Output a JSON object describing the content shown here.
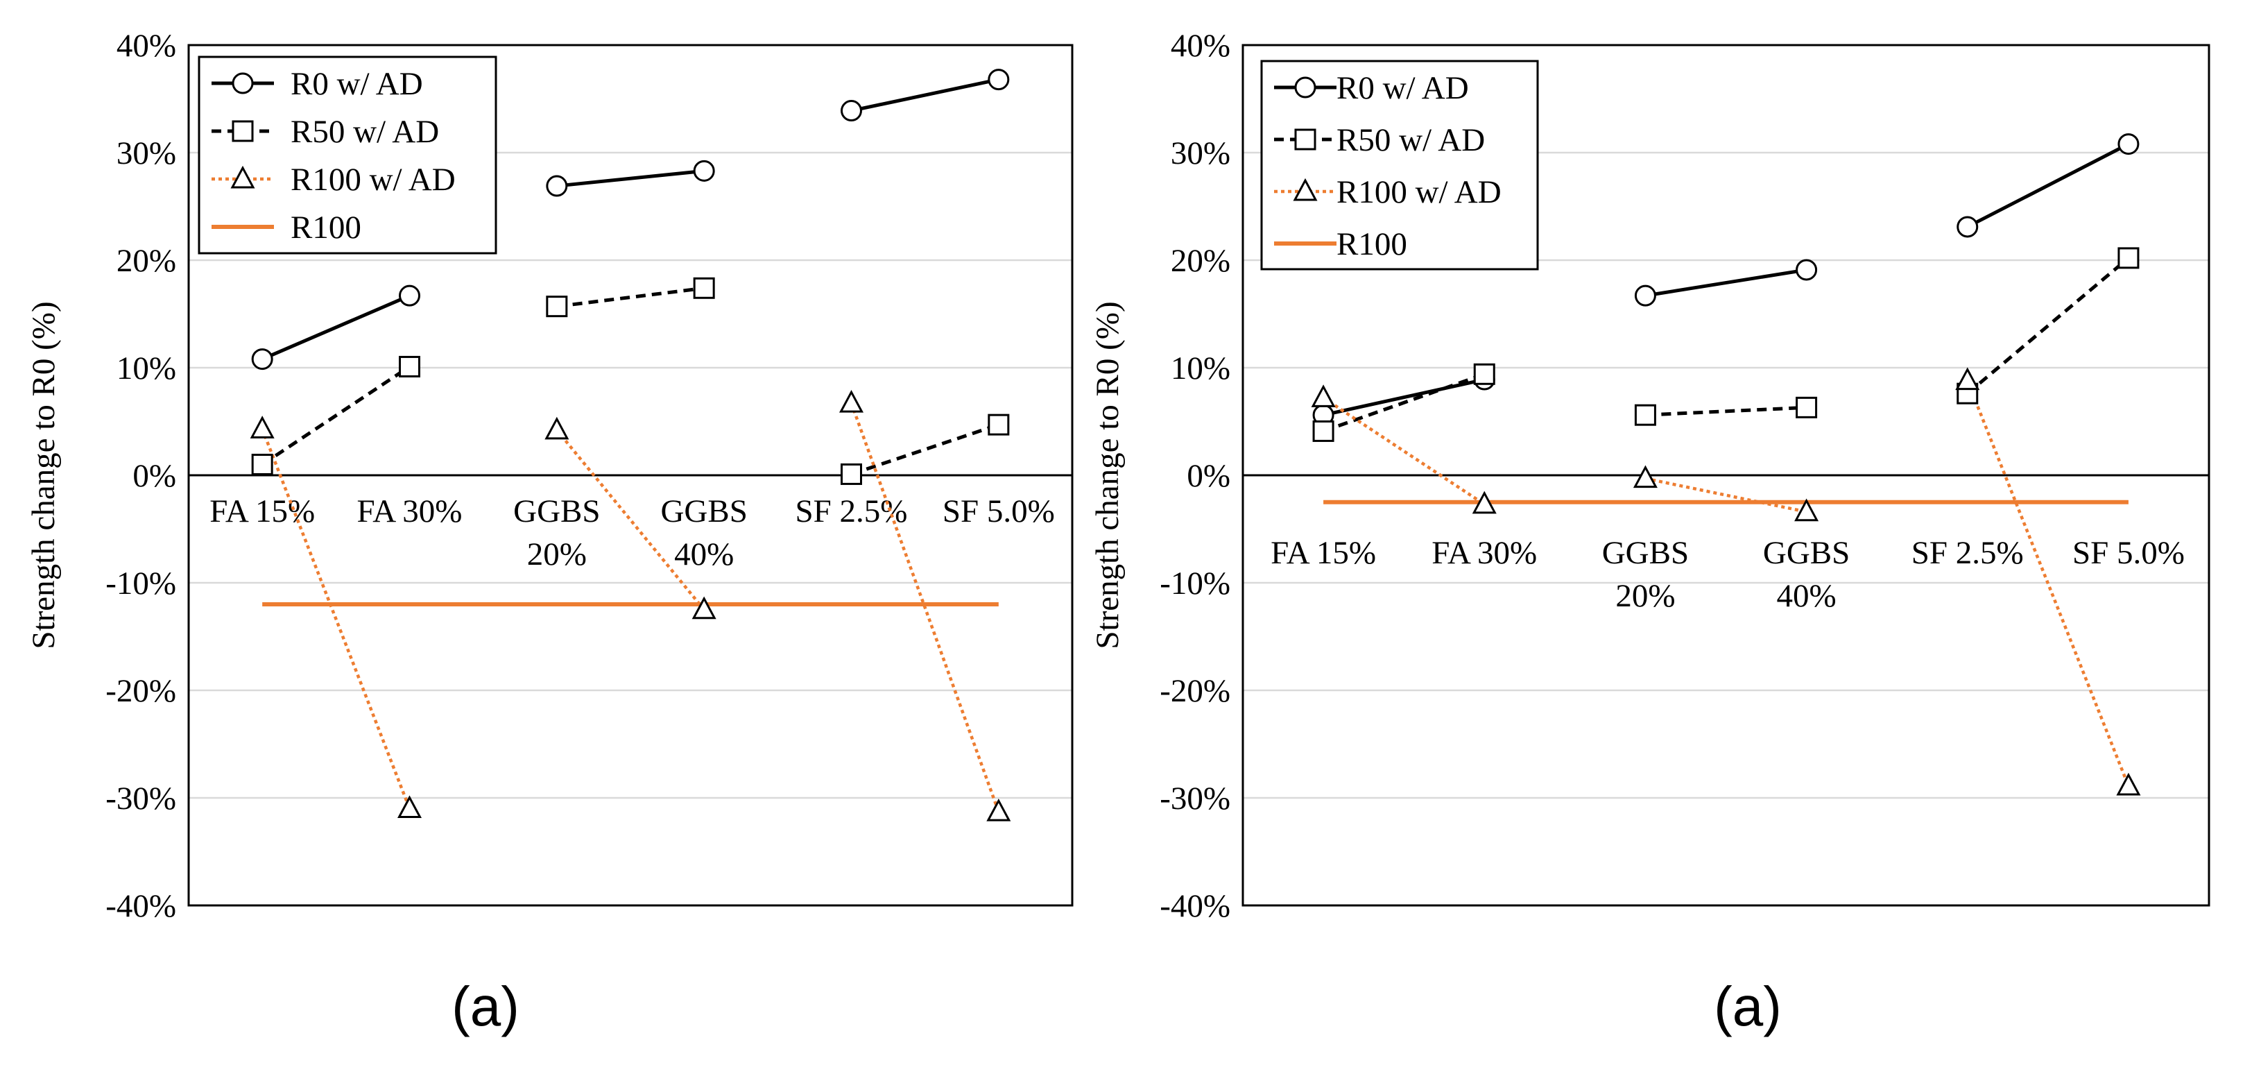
{
  "colors": {
    "black": "#000000",
    "orange": "#ED7D31",
    "grid": "#D9D9D9"
  },
  "chart_data": [
    {
      "type": "line",
      "caption": "(a)",
      "ylabel": "Strength change to R0 (%)",
      "ylim": [
        -40,
        40
      ],
      "yticks": [
        "-40%",
        "-30%",
        "-20%",
        "-10%",
        "0%",
        "10%",
        "20%",
        "30%",
        "40%"
      ],
      "categories": [
        [
          "FA 15%"
        ],
        [
          "FA 30%"
        ],
        [
          "GGBS",
          "20%"
        ],
        [
          "GGBS",
          "40%"
        ],
        [
          "SF 2.5%"
        ],
        [
          "SF 5.0%"
        ]
      ],
      "grid": true,
      "legend_position": "top-left",
      "series": [
        {
          "name": "R0 w/ AD",
          "style": "solid-black",
          "marker": "circle",
          "segments": [
            [
              10.8,
              16.7
            ],
            [
              26.9,
              28.3
            ],
            [
              33.9,
              36.8
            ]
          ]
        },
        {
          "name": "R50 w/ AD",
          "style": "dashed-black",
          "marker": "square",
          "segments": [
            [
              1.0,
              10.1
            ],
            [
              15.7,
              17.4
            ],
            [
              0.1,
              4.7
            ]
          ]
        },
        {
          "name": "R100 w/ AD",
          "style": "dotted-orange",
          "marker": "triangle",
          "segments": [
            [
              4.3,
              -31.0
            ],
            [
              4.2,
              -12.5
            ],
            [
              6.7,
              -31.3
            ]
          ]
        },
        {
          "name": "R100",
          "style": "solid-orange",
          "marker": "none",
          "constant": -12.0
        }
      ]
    },
    {
      "type": "line",
      "caption": "(a)",
      "ylabel": "Strength change to R0 (%)",
      "ylim": [
        -40,
        40
      ],
      "yticks": [
        "-40%",
        "-30%",
        "-20%",
        "-10%",
        "0%",
        "10%",
        "20%",
        "30%",
        "40%"
      ],
      "categories": [
        [
          "FA 15%"
        ],
        [
          "FA 30%"
        ],
        [
          "GGBS",
          "20%"
        ],
        [
          "GGBS",
          "40%"
        ],
        [
          "SF 2.5%"
        ],
        [
          "SF 5.0%"
        ]
      ],
      "grid": true,
      "legend_position": "top-left",
      "series": [
        {
          "name": "R0 w/ AD",
          "style": "solid-black",
          "marker": "circle",
          "segments": [
            [
              5.6,
              8.9
            ],
            [
              16.7,
              19.1
            ],
            [
              23.1,
              30.8
            ]
          ]
        },
        {
          "name": "R50 w/ AD",
          "style": "dashed-black",
          "marker": "square",
          "segments": [
            [
              4.1,
              9.4
            ],
            [
              5.6,
              6.3
            ],
            [
              7.6,
              20.2
            ]
          ]
        },
        {
          "name": "R100 w/ AD",
          "style": "dotted-orange",
          "marker": "triangle",
          "segments": [
            [
              7.2,
              -2.7
            ],
            [
              -0.3,
              -3.4
            ],
            [
              8.8,
              -28.9
            ]
          ]
        },
        {
          "name": "R100",
          "style": "solid-orange",
          "marker": "none",
          "constant": -2.5
        }
      ]
    }
  ]
}
